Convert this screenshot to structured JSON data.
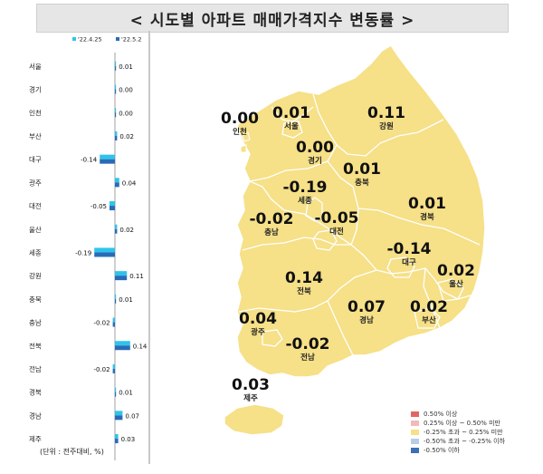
{
  "title": "< 시도별 아파트 매매가격지수 변동률 >",
  "unit_note": "(단위 : 전주대비, %)",
  "colors": {
    "series_prev": "#2ec4ea",
    "series_curr": "#2a6bb7",
    "map_fill": "#f6e088",
    "map_stroke": "#ffffff",
    "axis": "#888888"
  },
  "chart_data": [
    {
      "type": "bar",
      "orientation": "horizontal",
      "categories": [
        "서울",
        "경기",
        "인천",
        "부산",
        "대구",
        "광주",
        "대전",
        "울산",
        "세종",
        "강원",
        "충북",
        "충남",
        "전북",
        "전남",
        "경북",
        "경남",
        "제주"
      ],
      "series": [
        {
          "name": "'22.4.25",
          "values": [
            0.01,
            0.0,
            0.0,
            0.02,
            -0.14,
            0.04,
            -0.05,
            0.02,
            -0.19,
            0.11,
            0.01,
            -0.02,
            0.14,
            -0.02,
            0.01,
            0.07,
            0.03
          ]
        },
        {
          "name": "'22.5.2",
          "values": [
            0.01,
            0.0,
            0.0,
            0.02,
            -0.14,
            0.04,
            -0.05,
            0.02,
            -0.19,
            0.11,
            0.01,
            -0.02,
            0.14,
            -0.02,
            0.01,
            0.07,
            0.03
          ]
        }
      ],
      "data_labels": [
        "0.01",
        "0.00",
        "0.00",
        "0.02",
        "-0.14",
        "0.04",
        "-0.05",
        "0.02",
        "-0.19",
        "0.11",
        "0.01",
        "-0.02",
        "0.14",
        "-0.02",
        "0.01",
        "0.07",
        "0.03"
      ],
      "legend_position": "top",
      "grid": false
    },
    {
      "type": "map",
      "regions": [
        {
          "name": "인천",
          "value": "0.00"
        },
        {
          "name": "서울",
          "value": "0.01"
        },
        {
          "name": "강원",
          "value": "0.11"
        },
        {
          "name": "경기",
          "value": "0.00"
        },
        {
          "name": "충북",
          "value": "0.01"
        },
        {
          "name": "세종",
          "value": "-0.19"
        },
        {
          "name": "충남",
          "value": "-0.02"
        },
        {
          "name": "대전",
          "value": "-0.05"
        },
        {
          "name": "경북",
          "value": "0.01"
        },
        {
          "name": "대구",
          "value": "-0.14"
        },
        {
          "name": "울산",
          "value": "0.02"
        },
        {
          "name": "전북",
          "value": "0.14"
        },
        {
          "name": "경남",
          "value": "0.07"
        },
        {
          "name": "부산",
          "value": "0.02"
        },
        {
          "name": "광주",
          "value": "0.04"
        },
        {
          "name": "전남",
          "value": "-0.02"
        },
        {
          "name": "제주",
          "value": "0.03"
        }
      ],
      "legend": [
        {
          "label": "0.50% 이상",
          "color": "#e06666"
        },
        {
          "label": "0.25% 이상 ~ 0.50% 미만",
          "color": "#f4b8b8"
        },
        {
          "label": "-0.25% 초과 ~ 0.25% 미만",
          "color": "#f6e088"
        },
        {
          "label": "-0.50% 초과 ~ -0.25% 이하",
          "color": "#b9cce8"
        },
        {
          "label": "-0.50% 이하",
          "color": "#3d6fb5"
        }
      ]
    }
  ]
}
